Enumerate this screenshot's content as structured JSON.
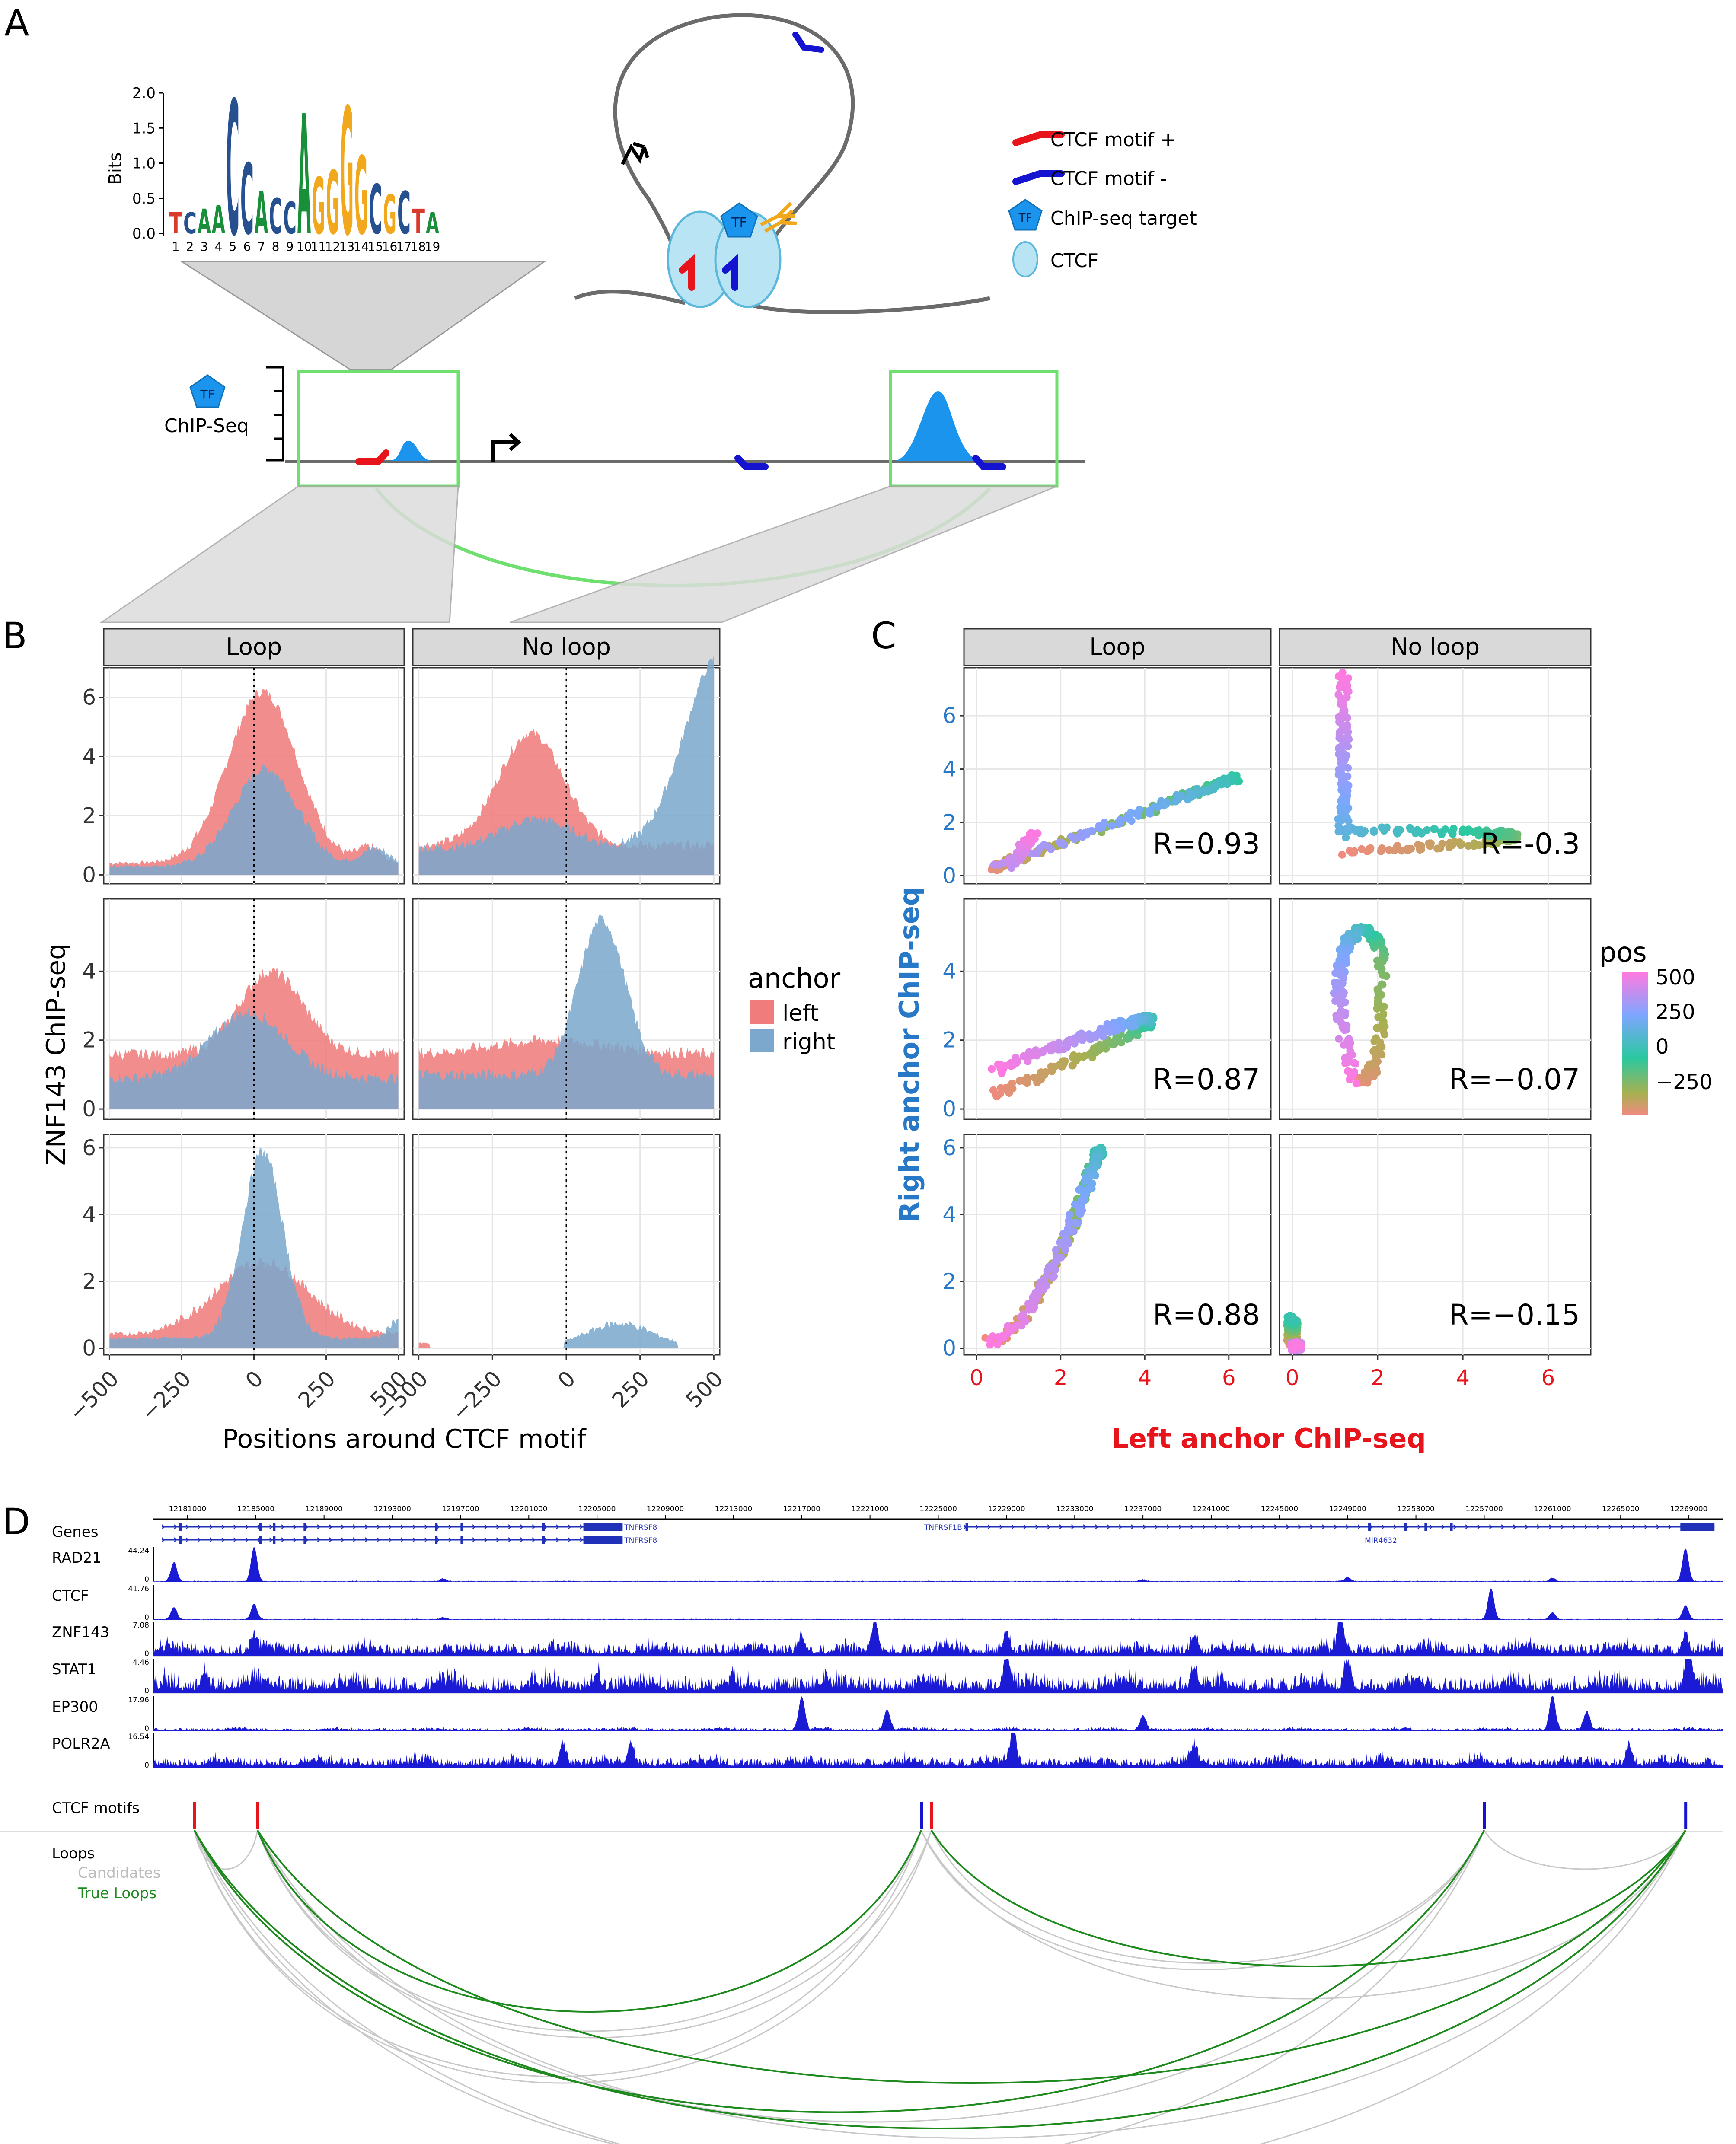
{
  "panelA": {
    "label": "A",
    "logo": {
      "ylabel": "Bits",
      "yticks": [
        "2.0",
        "1.5",
        "1.0",
        "0.5",
        "0.0"
      ],
      "positions": [
        "1",
        "2",
        "3",
        "4",
        "5",
        "6",
        "7",
        "8",
        "9",
        "10",
        "11",
        "12",
        "13",
        "14",
        "15",
        "16",
        "17",
        "18",
        "19"
      ],
      "consensus": [
        "T",
        "C",
        "A",
        "A",
        "C",
        "C",
        "A",
        "C",
        "C",
        "A",
        "G",
        "G",
        "G",
        "G",
        "C",
        "G",
        "C",
        "T",
        "A"
      ],
      "heights": [
        0.3,
        0.3,
        0.35,
        0.4,
        1.9,
        1.0,
        0.6,
        0.5,
        0.45,
        1.7,
        0.8,
        0.9,
        1.8,
        1.1,
        0.7,
        0.55,
        0.6,
        0.35,
        0.3
      ],
      "base_colors": {
        "A": "#1a8f3a",
        "C": "#26508f",
        "G": "#f2a81c",
        "T": "#d83a2b"
      }
    },
    "chipseq_label": "ChIP-Seq",
    "tf_label": "TF",
    "legend": [
      {
        "label": "CTCF motif +",
        "icon": "red-motif-arrow-icon",
        "color": "#e8141c"
      },
      {
        "label": "CTCF motif -",
        "icon": "blue-motif-arrow-icon",
        "color": "#1414d0"
      },
      {
        "label": "ChIP-seq target",
        "icon": "tf-pentagon-icon",
        "color": "#1a94ec"
      },
      {
        "label": "CTCF",
        "icon": "ctcf-protein-icon",
        "color": "#b8e4f4"
      }
    ]
  },
  "panelB": {
    "label": "B",
    "facets": [
      "Loop",
      "No loop"
    ],
    "ylabel": "ZNF143 ChIP-seq",
    "xlabel": "Positions around CTCF motif",
    "xticks": [
      "-500",
      "-250",
      "0",
      "250",
      "500"
    ],
    "xlim": [
      -520,
      520
    ],
    "rows": [
      {
        "ylim": [
          -0.3,
          7.0
        ],
        "yticks": [
          0,
          2,
          4,
          6
        ]
      },
      {
        "ylim": [
          -0.3,
          6.1
        ],
        "yticks": [
          0,
          2,
          4
        ]
      },
      {
        "ylim": [
          -0.2,
          6.4
        ],
        "yticks": [
          0,
          2,
          4,
          6
        ]
      }
    ],
    "legend": {
      "title": "anchor",
      "items": [
        {
          "label": "left",
          "color": "#f07c7c"
        },
        {
          "label": "right",
          "color": "#7ba8cc"
        }
      ]
    },
    "colors": {
      "left": "#ee7a79",
      "right": "#7aa7cc"
    }
  },
  "panelC": {
    "label": "C",
    "facets": [
      "Loop",
      "No loop"
    ],
    "xlabel": "Left anchor ChIP-seq",
    "ylabel": "Right anchor ChIP-seq",
    "xticks": [
      "0",
      "2",
      "4",
      "6"
    ],
    "xlim": [
      -0.3,
      7.0
    ],
    "rows": [
      {
        "ylim": [
          -0.3,
          7.8
        ],
        "yticks": [
          0,
          2,
          4,
          6
        ]
      },
      {
        "ylim": [
          -0.3,
          6.1
        ],
        "yticks": [
          0,
          2,
          4
        ]
      },
      {
        "ylim": [
          -0.2,
          6.4
        ],
        "yticks": [
          0,
          2,
          4,
          6
        ]
      }
    ],
    "correlations": [
      [
        "R=0.93",
        "R=-0.3"
      ],
      [
        "R=0.87",
        "R=−0.07"
      ],
      [
        "R=0.88",
        "R=−0.15"
      ]
    ],
    "legend": {
      "title": "pos",
      "ticks": [
        "500",
        "250",
        "0",
        "−250"
      ]
    }
  },
  "panelD": {
    "label": "D",
    "coords": [
      "12181000",
      "12185000",
      "12189000",
      "12193000",
      "12197000",
      "12201000",
      "12205000",
      "12209000",
      "12213000",
      "12217000",
      "12221000",
      "12225000",
      "12229000",
      "12233000",
      "12237000",
      "12241000",
      "12245000",
      "12249000",
      "12253000",
      "12257000",
      "12261000",
      "12265000",
      "12269000"
    ],
    "genes_label": "Genes",
    "gene_names": [
      "TNFRSF8",
      "TNFRSF8",
      "TNFRSF1B",
      "MIR4632"
    ],
    "tracks": [
      {
        "name": "RAD21",
        "max": "44.24",
        "zero": "0"
      },
      {
        "name": "CTCF",
        "max": "41.76",
        "zero": "0"
      },
      {
        "name": "ZNF143",
        "max": "7.08",
        "zero": "0"
      },
      {
        "name": "STAT1",
        "max": "4.46",
        "zero": "0"
      },
      {
        "name": "EP300",
        "max": "17.96",
        "zero": "0"
      },
      {
        "name": "POLR2A",
        "max": "16.54",
        "zero": "0"
      }
    ],
    "motifs_label": "CTCF motifs",
    "loops_label": "Loops",
    "candidates_label": "Candidates",
    "true_loops_label": "True Loops",
    "colors": {
      "signal": "#1b1bd6",
      "candidate": "#c8c8c8",
      "true_loop": "#1e8a1e",
      "motif_plus": "#e8141c",
      "motif_minus": "#1414d0"
    }
  }
}
